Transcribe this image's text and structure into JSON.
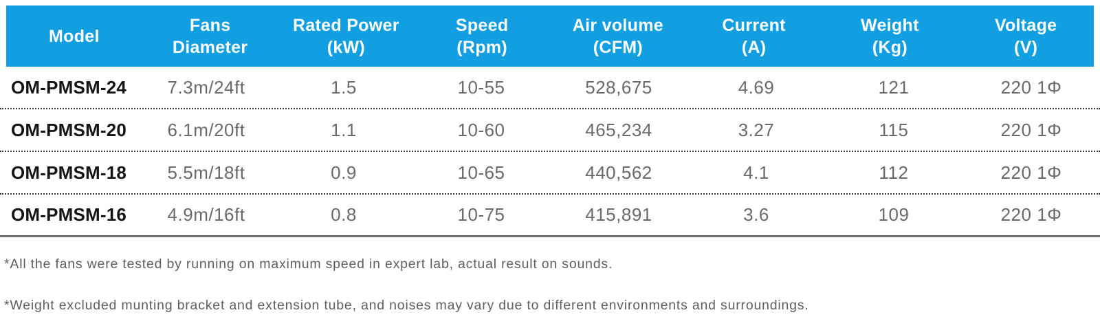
{
  "colors": {
    "header_bg": "#129FE2",
    "header_text": "#FFFFFF",
    "body_text": "#6A6A6A",
    "model_text": "#141414",
    "divider": "#3A3A3A"
  },
  "table": {
    "columns": [
      {
        "id": "model",
        "label": "Model"
      },
      {
        "id": "fans-diameter",
        "label": "Fans Diameter"
      },
      {
        "id": "rated-power",
        "label": "Rated Power (kW)"
      },
      {
        "id": "speed",
        "label": "Speed (Rpm)"
      },
      {
        "id": "air-volume",
        "label": "Air volume (CFM)"
      },
      {
        "id": "current",
        "label": "Current (A)"
      },
      {
        "id": "weight",
        "label": "Weight (Kg)"
      },
      {
        "id": "voltage",
        "label": "Voltage (V)"
      }
    ],
    "header_lines": [
      [
        "Model"
      ],
      [
        "Fans",
        "Diameter"
      ],
      [
        "Rated Power",
        "(kW)"
      ],
      [
        "Speed",
        "(Rpm)"
      ],
      [
        "Air volume",
        "(CFM)"
      ],
      [
        "Current",
        "(A)"
      ],
      [
        "Weight",
        "(Kg)"
      ],
      [
        "Voltage",
        "(V)"
      ]
    ],
    "rows": [
      [
        "OM-PMSM-24",
        "7.3m/24ft",
        "1.5",
        "10-55",
        "528,675",
        "4.69",
        "121",
        "220 1Φ"
      ],
      [
        "OM-PMSM-20",
        "6.1m/20ft",
        "1.1",
        "10-60",
        "465,234",
        "3.27",
        "115",
        "220 1Φ"
      ],
      [
        "OM-PMSM-18",
        "5.5m/18ft",
        "0.9",
        "10-65",
        "440,562",
        "4.1",
        "112",
        "220 1Φ"
      ],
      [
        "OM-PMSM-16",
        "4.9m/16ft",
        "0.8",
        "10-75",
        "415,891",
        "3.6",
        "109",
        "220 1Φ"
      ]
    ]
  },
  "notes": [
    "*All the fans were tested by running on maximum speed in expert lab, actual result on sounds.",
    "*Weight excluded munting bracket and extension tube, and noises may vary due to different environments and surroundings."
  ]
}
